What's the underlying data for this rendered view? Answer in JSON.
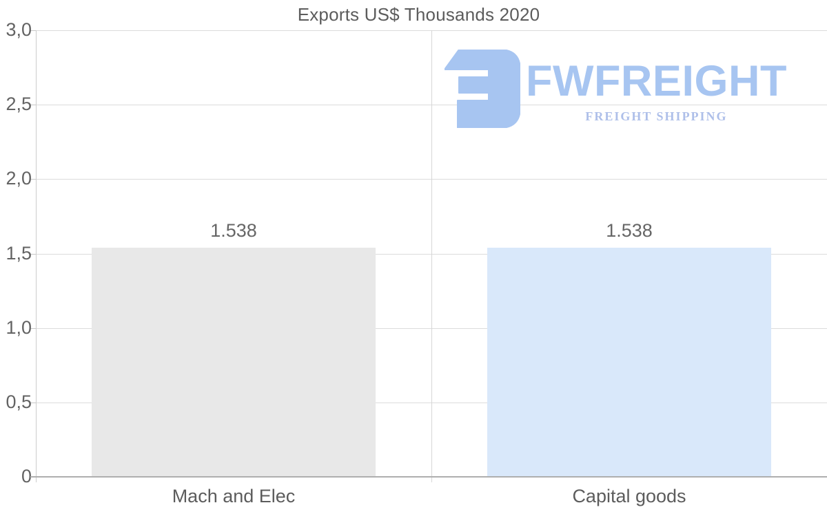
{
  "watermark": {
    "brand": "FWFREIGHT",
    "tagline": "FREIGHT SHIPPING",
    "mark_color": "#a7c5f1",
    "brand_color": "#a7c5f1",
    "tagline_color": "#aebfe9"
  },
  "chart_data": {
    "type": "bar",
    "title": "Exports US$ Thousands 2020",
    "categories": [
      "Mach and Elec",
      "Capital goods"
    ],
    "series": [
      {
        "name": "Exports US$ Thousands",
        "values": [
          1.538,
          1.538
        ]
      }
    ],
    "value_labels": [
      "1.538",
      "1.538"
    ],
    "bar_colors": [
      "#e8e8e8",
      "#d9e8fa"
    ],
    "y_ticks": [
      {
        "value": 3,
        "label": "3,0"
      },
      {
        "value": 2.5,
        "label": "2,5"
      },
      {
        "value": 2,
        "label": "2,0"
      },
      {
        "value": 1.5,
        "label": "1,5"
      },
      {
        "value": 1,
        "label": "1,0"
      },
      {
        "value": 0.5,
        "label": "0,5"
      },
      {
        "value": 0,
        "label": "0"
      }
    ],
    "ylim": [
      0,
      3
    ],
    "xlabel": "",
    "ylabel": "",
    "legend": "none",
    "grid": "horizontal gridlines plus one vertical category divider",
    "number_format": "dot as thousands separator in data labels, comma decimals on axis"
  }
}
